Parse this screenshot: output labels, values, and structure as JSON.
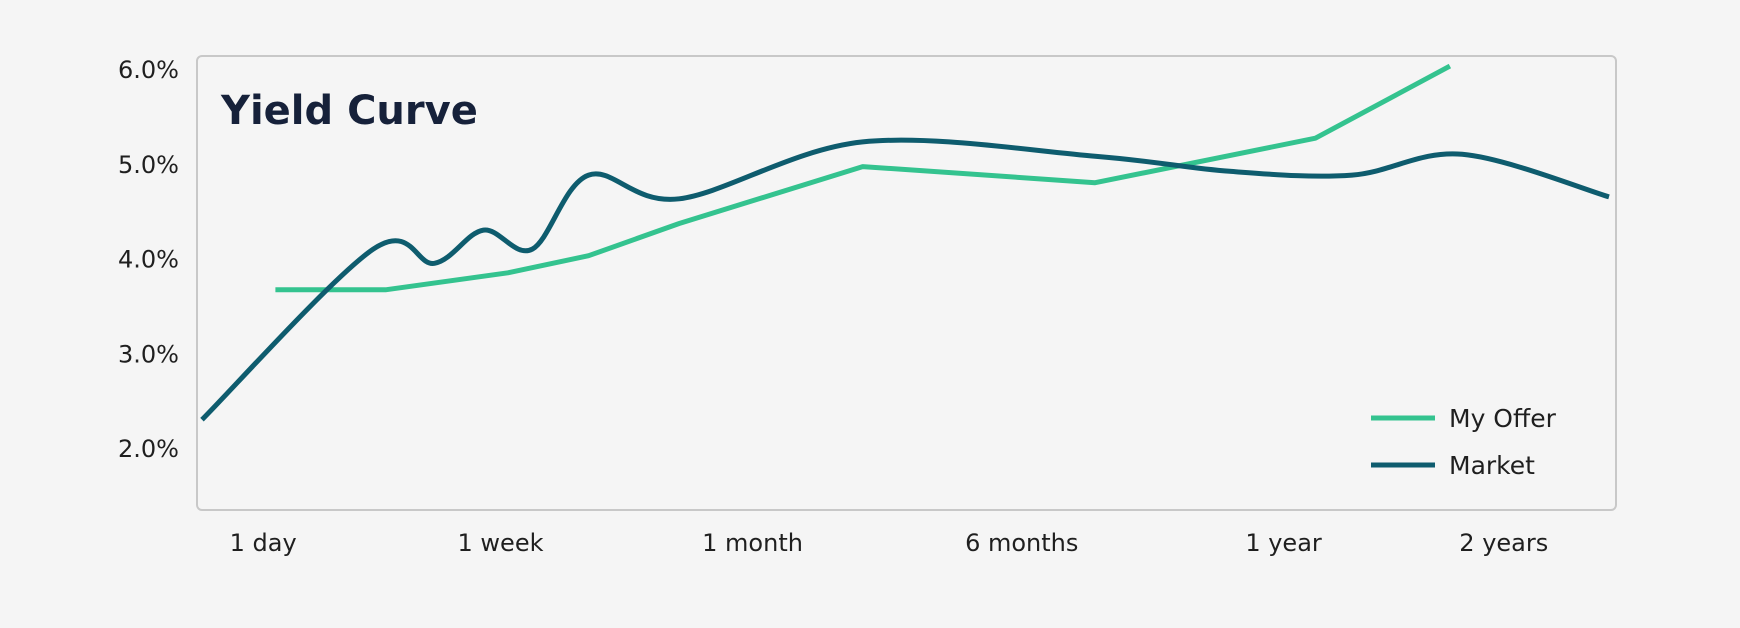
{
  "chart_data": {
    "type": "line",
    "title": "Yield Curve",
    "xlabel": "",
    "ylabel": "",
    "x_ticks": [
      "1 day",
      "1 week",
      "1 month",
      "6 months",
      "1 year",
      "2 years"
    ],
    "y_ticks": [
      "6.0%",
      "5.0%",
      "4.0%",
      "3.0%",
      "2.0%"
    ],
    "ylim": [
      1.4,
      6.2
    ],
    "xlim": [
      -0.2,
      5.55
    ],
    "grid": false,
    "legend_position": "bottom-right",
    "series": [
      {
        "name": "My Offer",
        "color": "#34c38f",
        "style": "linear",
        "x": [
          0.1,
          0.55,
          1.05,
          1.38,
          1.75,
          2.5,
          3.45,
          4.35,
          4.9
        ],
        "y": [
          3.67,
          3.67,
          3.85,
          4.03,
          4.37,
          4.97,
          4.8,
          5.27,
          6.03
        ]
      },
      {
        "name": "Market",
        "color": "#0e5c6e",
        "style": "smooth",
        "x": [
          -0.2,
          0.5,
          0.75,
          0.95,
          1.15,
          1.38,
          1.75,
          2.5,
          3.45,
          4.0,
          4.5,
          4.95,
          5.55
        ],
        "y": [
          2.3,
          4.1,
          3.95,
          4.3,
          4.1,
          4.88,
          4.63,
          5.23,
          5.08,
          4.92,
          4.88,
          5.1,
          4.65
        ]
      }
    ]
  }
}
